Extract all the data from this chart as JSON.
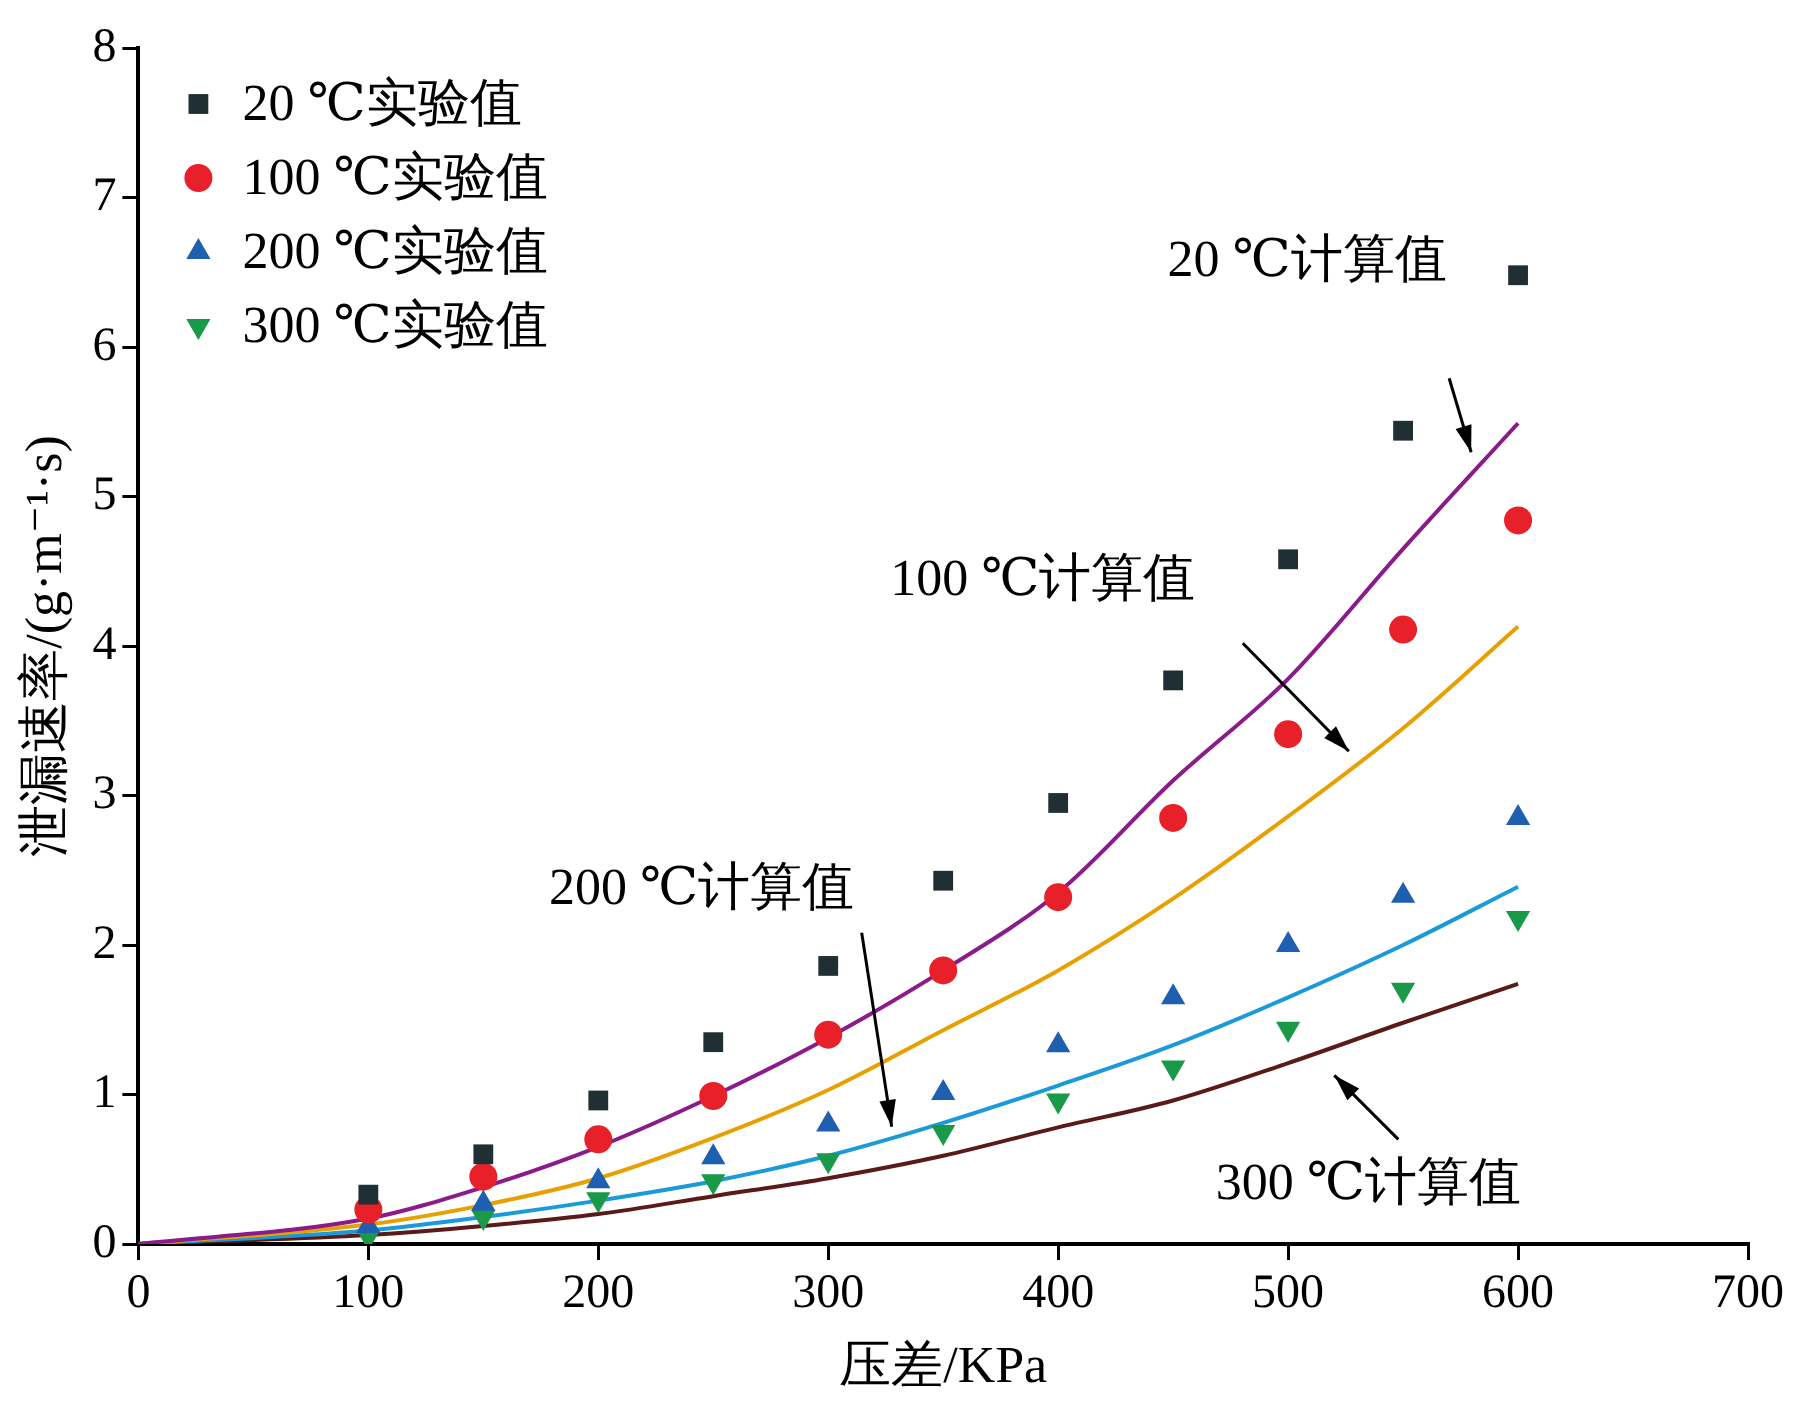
{
  "chart_data": {
    "type": "scatter",
    "xlabel": "压差/KPa",
    "ylabel": "泄漏速率/(g·m⁻¹·s)",
    "x": [
      0,
      100,
      150,
      200,
      250,
      300,
      350,
      400,
      450,
      500,
      550,
      600
    ],
    "xlim": [
      0,
      700
    ],
    "xticks": [
      0,
      100,
      200,
      300,
      400,
      500,
      600,
      700
    ],
    "ylim": [
      0,
      8
    ],
    "yticks": [
      0,
      1,
      2,
      3,
      4,
      5,
      6,
      7,
      8
    ],
    "grid": false,
    "legend": "top left",
    "series": [
      {
        "name": "20 ℃实验值",
        "marker": "square",
        "color": "#1f2f33",
        "values": [
          null,
          0.33,
          0.6,
          0.96,
          1.35,
          1.86,
          2.43,
          2.95,
          3.77,
          4.58,
          5.44,
          6.48
        ]
      },
      {
        "name": "100 ℃实验值",
        "marker": "circle",
        "color": "#e8202a",
        "values": [
          null,
          0.23,
          0.45,
          0.7,
          0.99,
          1.4,
          1.83,
          2.32,
          2.85,
          3.41,
          4.11,
          4.84
        ]
      },
      {
        "name": "200 ℃实验值",
        "marker": "triangle",
        "color": "#1f5fb0",
        "values": [
          null,
          0.12,
          0.27,
          0.42,
          0.58,
          0.8,
          1.01,
          1.33,
          1.65,
          2.0,
          2.33,
          2.85
        ]
      },
      {
        "name": "300 ℃实验值",
        "marker": "triangle-down",
        "color": "#1a9a48",
        "values": [
          null,
          0.05,
          0.18,
          0.3,
          0.42,
          0.56,
          0.75,
          0.96,
          1.18,
          1.44,
          1.7,
          2.18
        ]
      },
      {
        "type": "line",
        "color": "#8b1a8b",
        "values": [
          0,
          0.17,
          0.38,
          0.65,
          0.99,
          1.38,
          1.83,
          2.35,
          3.1,
          3.78,
          4.65,
          5.49
        ]
      },
      {
        "type": "line",
        "color": "#e8a000",
        "values": [
          0,
          0.13,
          0.26,
          0.44,
          0.71,
          1.03,
          1.43,
          1.83,
          2.31,
          2.86,
          3.45,
          4.13
        ]
      },
      {
        "type": "line",
        "color": "#1a9ad8",
        "values": [
          0,
          0.09,
          0.18,
          0.29,
          0.42,
          0.59,
          0.81,
          1.06,
          1.33,
          1.65,
          2.0,
          2.39
        ]
      },
      {
        "type": "line",
        "color": "#5a1a1a",
        "values": [
          0,
          0.06,
          0.12,
          0.2,
          0.32,
          0.44,
          0.59,
          0.78,
          0.96,
          1.21,
          1.48,
          1.74
        ]
      }
    ],
    "annotations": [
      "20 ℃计算值",
      "100 ℃计算值",
      "200 ℃计算值",
      "300 ℃计算值"
    ]
  }
}
